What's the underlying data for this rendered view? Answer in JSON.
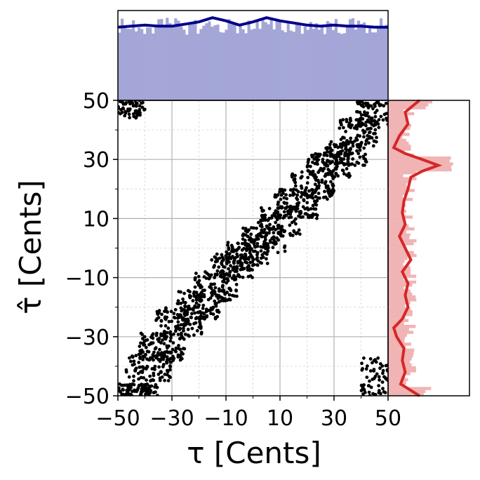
{
  "chart_data": [
    {
      "type": "scatter",
      "panel": "main",
      "xlabel": "τ [Cents]",
      "ylabel": "τ̂ [Cents]",
      "xlim": [
        -50,
        50
      ],
      "ylim": [
        -50,
        50
      ],
      "xticks": [
        -50,
        -30,
        -10,
        10,
        30,
        50
      ],
      "yticks": [
        -50,
        -30,
        -10,
        10,
        30,
        50
      ],
      "xtick_labels": [
        "−50",
        "−30",
        "−10",
        "10",
        "30",
        "50"
      ],
      "ytick_labels": [
        "−50",
        "−30",
        "−10",
        "10",
        "30",
        "50"
      ],
      "grid": true,
      "marker_color": "#000000",
      "series": [
        {
          "clusters": [
            {
              "x": [
                -50,
                -40
              ],
              "y": [
                44,
                50
              ]
            },
            {
              "x": [
                -50,
                -35
              ],
              "y": [
                -50,
                -46
              ]
            },
            {
              "x": [
                40,
                50
              ],
              "y": [
                -50,
                -37
              ]
            },
            {
              "x": [
                -47,
                -30
              ],
              "y": [
                -45,
                -35
              ]
            },
            {
              "x": [
                -42,
                -25
              ],
              "y": [
                -38,
                -28
              ]
            },
            {
              "x": [
                -36,
                -18
              ],
              "y": [
                -30,
                -20
              ]
            },
            {
              "x": [
                -28,
                -12
              ],
              "y": [
                -24,
                -14
              ]
            },
            {
              "x": [
                -22,
                -6
              ],
              "y": [
                -18,
                -8
              ]
            },
            {
              "x": [
                -16,
                0
              ],
              "y": [
                -10,
                -2
              ]
            },
            {
              "x": [
                -10,
                6
              ],
              "y": [
                -6,
                2
              ]
            },
            {
              "x": [
                -4,
                12
              ],
              "y": [
                -2,
                8
              ]
            },
            {
              "x": [
                2,
                18
              ],
              "y": [
                4,
                14
              ]
            },
            {
              "x": [
                8,
                24
              ],
              "y": [
                10,
                20
              ]
            },
            {
              "x": [
                14,
                30
              ],
              "y": [
                16,
                26
              ]
            },
            {
              "x": [
                20,
                36
              ],
              "y": [
                24,
                32
              ]
            },
            {
              "x": [
                26,
                42
              ],
              "y": [
                28,
                36
              ]
            },
            {
              "x": [
                32,
                46
              ],
              "y": [
                34,
                44
              ]
            },
            {
              "x": [
                38,
                50
              ],
              "y": [
                40,
                50
              ]
            }
          ]
        }
      ]
    },
    {
      "type": "bar",
      "panel": "top-marginal",
      "description_of_axis": "histogram of τ with density curve",
      "xlim": [
        -50,
        50
      ],
      "bar_color": "#a3a6d6",
      "line_color": "#00008b",
      "density_curve": {
        "x": [
          -50,
          -45,
          -40,
          -35,
          -30,
          -25,
          -20,
          -15,
          -10,
          -5,
          0,
          5,
          10,
          15,
          20,
          25,
          30,
          35,
          40,
          45,
          50
        ],
        "y": [
          0.69,
          0.7,
          0.71,
          0.7,
          0.7,
          0.72,
          0.74,
          0.78,
          0.75,
          0.71,
          0.74,
          0.78,
          0.75,
          0.73,
          0.71,
          0.7,
          0.71,
          0.7,
          0.7,
          0.69,
          0.69
        ]
      }
    },
    {
      "type": "bar",
      "panel": "right-marginal",
      "ylim": [
        -50,
        50
      ],
      "bar_color": "#f0b4b4",
      "line_color": "#d62728",
      "density_curve": {
        "y": [
          -50,
          -46,
          -42,
          -38,
          -34,
          -30,
          -27,
          -24,
          -20,
          -16,
          -12,
          -8,
          -4,
          0,
          4,
          8,
          12,
          16,
          20,
          24,
          26,
          28,
          30,
          32,
          34,
          38,
          42,
          46,
          50
        ],
        "x": [
          0.55,
          0.22,
          0.3,
          0.25,
          0.28,
          0.15,
          0.1,
          0.25,
          0.35,
          0.3,
          0.35,
          0.25,
          0.4,
          0.3,
          0.2,
          0.3,
          0.25,
          0.28,
          0.35,
          0.4,
          0.6,
          0.88,
          0.6,
          0.3,
          0.1,
          0.2,
          0.35,
          0.3,
          0.55
        ]
      }
    }
  ]
}
